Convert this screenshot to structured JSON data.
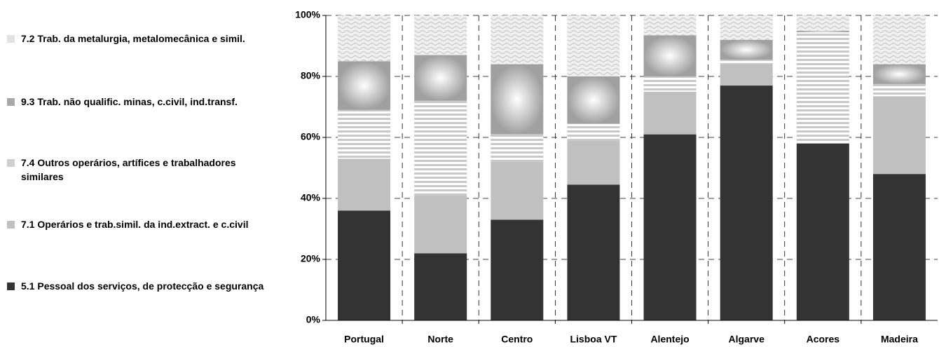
{
  "chart_data": {
    "type": "stacked_bar",
    "categories": [
      "Portugal",
      "Norte",
      "Centro",
      "Lisboa VT",
      "Alentejo",
      "Algarve",
      "Acores",
      "Madeira"
    ],
    "series": [
      {
        "name": "5.1 Pessoal dos serviços, de protecção e segurança",
        "color": "#333333",
        "values": [
          36,
          22,
          33,
          44.5,
          61,
          77,
          58,
          48
        ]
      },
      {
        "name": "7.1 Operários e trab.simil. da ind.extract. e c.civil",
        "color": "#c0c0c0",
        "values": [
          17,
          19,
          19,
          14.5,
          14,
          7,
          0,
          25.5
        ]
      },
      {
        "name": "7.4 Outros operários, artífices e trabalhadores similares",
        "color": "#cfcfcf",
        "values": [
          16,
          31,
          9,
          5.5,
          5,
          1.5,
          36.5,
          4
        ]
      },
      {
        "name": "9.3 Trab. não qualific. minas, c.civil, ind.transf.",
        "color": "#a8a8a8",
        "values": [
          16,
          15,
          23,
          15.5,
          13.5,
          6.5,
          0.5,
          6.5
        ]
      },
      {
        "name": "7.2 Trab. da metalurgia, metalomecânica e simil.",
        "color": "#e2e2e2",
        "values": [
          15,
          13,
          16,
          20,
          6.5,
          8,
          5,
          16
        ]
      }
    ],
    "ylim": [
      0,
      100
    ],
    "yticks": [
      {
        "value": 0,
        "label": "0%"
      },
      {
        "value": 20,
        "label": "20%"
      },
      {
        "value": 40,
        "label": "40%"
      },
      {
        "value": 60,
        "label": "60%"
      },
      {
        "value": 80,
        "label": "80%"
      },
      {
        "value": 100,
        "label": "100%"
      }
    ],
    "grid": true
  }
}
